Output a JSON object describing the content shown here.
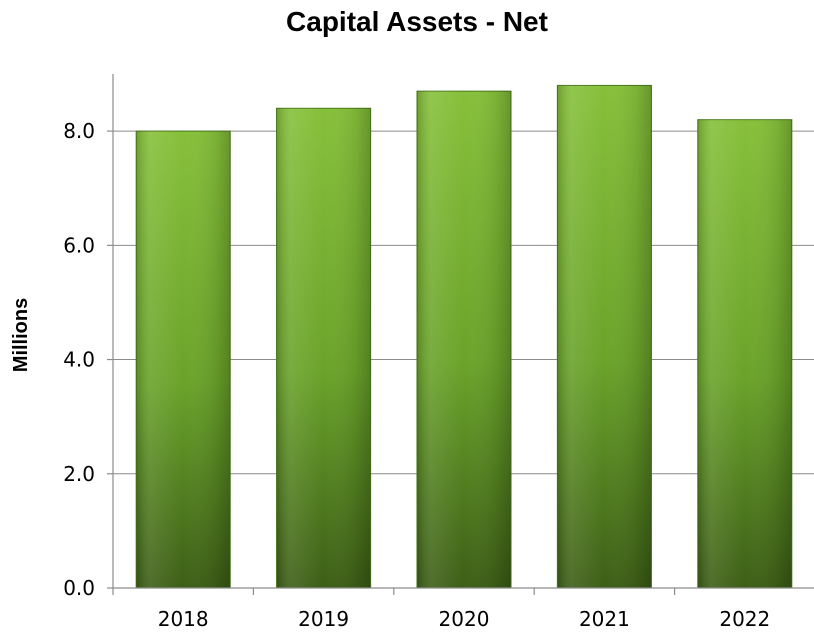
{
  "chart_data": {
    "type": "bar",
    "title": "Capital Assets - Net",
    "xlabel": "",
    "ylabel": "Millions",
    "categories": [
      "2018",
      "2019",
      "2020",
      "2021",
      "2022"
    ],
    "values": [
      8.0,
      8.4,
      8.7,
      8.8,
      8.2
    ],
    "ylim": [
      0,
      9
    ],
    "yticks": [
      "0.0",
      "2.0",
      "4.0",
      "6.0",
      "8.0"
    ],
    "ytick_values": [
      0,
      2,
      4,
      6,
      8
    ],
    "grid": true,
    "legend": "none",
    "colors": {
      "bar_light": "#86c03a",
      "bar_mid": "#6aa32a",
      "bar_dark": "#3c5e16",
      "bar_edge": "#4a7a1c"
    }
  }
}
